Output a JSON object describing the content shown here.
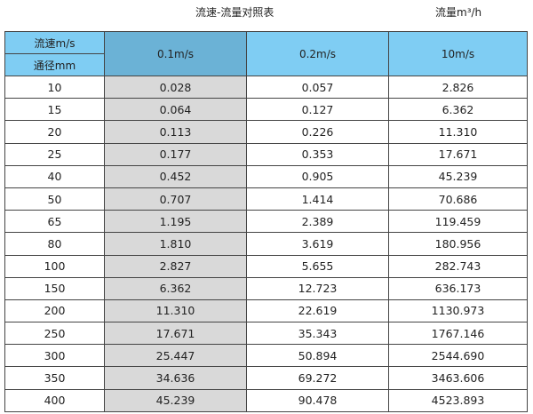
{
  "title": "流速-流量对照表",
  "unit": "流量m³/h",
  "header": {
    "velocity_label": "流速m/s",
    "diameter_label": "通径mm",
    "columns": [
      "0.1m/s",
      "0.2m/s",
      "10m/s"
    ]
  },
  "colors": {
    "header": "#7fcdf3",
    "selected_header": "#6bb2d6",
    "highlight_column": "#d9d9d9"
  },
  "rows": [
    [
      "10",
      "0.028",
      "0.057",
      "2.826"
    ],
    [
      "15",
      "0.064",
      "0.127",
      "6.362"
    ],
    [
      "20",
      "0.113",
      "0.226",
      "11.310"
    ],
    [
      "25",
      "0.177",
      "0.353",
      "17.671"
    ],
    [
      "40",
      "0.452",
      "0.905",
      "45.239"
    ],
    [
      "50",
      "0.707",
      "1.414",
      "70.686"
    ],
    [
      "65",
      "1.195",
      "2.389",
      "119.459"
    ],
    [
      "80",
      "1.810",
      "3.619",
      "180.956"
    ],
    [
      "100",
      "2.827",
      "5.655",
      "282.743"
    ],
    [
      "150",
      "6.362",
      "12.723",
      "636.173"
    ],
    [
      "200",
      "11.310",
      "22.619",
      "1130.973"
    ],
    [
      "250",
      "17.671",
      "35.343",
      "1767.146"
    ],
    [
      "300",
      "25.447",
      "50.894",
      "2544.690"
    ],
    [
      "350",
      "34.636",
      "69.272",
      "3463.606"
    ],
    [
      "400",
      "45.239",
      "90.478",
      "4523.893"
    ]
  ]
}
